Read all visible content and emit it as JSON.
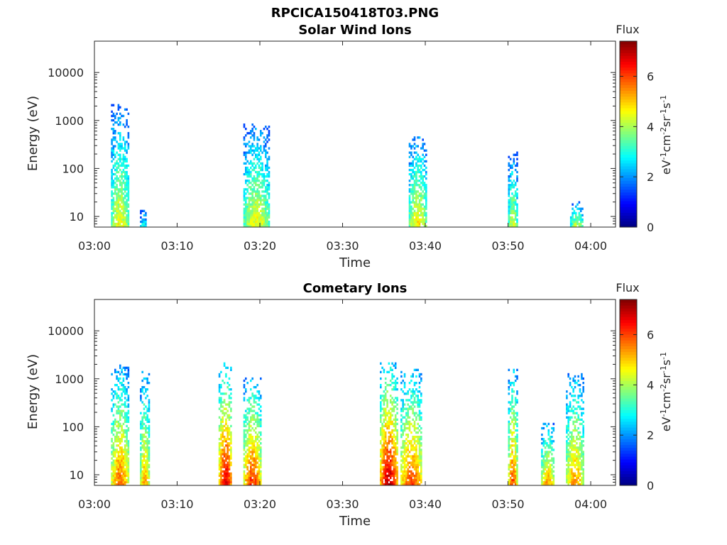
{
  "figure_title": "RPCICA150418T03.PNG",
  "chart_data": [
    {
      "type": "heatmap",
      "title": "Solar Wind Ions",
      "xlabel": "Time",
      "ylabel": "Energy (eV)",
      "y_scale": "log",
      "ylim": [
        6,
        45000
      ],
      "xlim": [
        "03:00",
        "04:03"
      ],
      "x_ticks": [
        "03:00",
        "03:10",
        "03:20",
        "03:30",
        "03:40",
        "03:50",
        "04:00"
      ],
      "y_ticks": [
        "10",
        "100",
        "1000",
        "10000"
      ],
      "colorbar": {
        "title": "Flux",
        "label": "eV-1 cm-2 sr-1 s-1",
        "min": 0,
        "max": 7.4,
        "ticks": [
          "0",
          "2",
          "4",
          "6"
        ],
        "colormap": "jet"
      },
      "bursts": [
        {
          "start": "03:02",
          "end": "03:04",
          "emin": 6,
          "emax": 2000,
          "peak": 4.6
        },
        {
          "start": "03:05.5",
          "end": "03:06.2",
          "emin": 6,
          "emax": 15,
          "peak": 3.0
        },
        {
          "start": "03:18",
          "end": "03:21",
          "emin": 6,
          "emax": 800,
          "peak": 4.6
        },
        {
          "start": "03:38",
          "end": "03:40",
          "emin": 6,
          "emax": 500,
          "peak": 4.8
        },
        {
          "start": "03:50",
          "end": "03:51",
          "emin": 6,
          "emax": 220,
          "peak": 4.4
        },
        {
          "start": "03:57.5",
          "end": "03:59",
          "emin": 6,
          "emax": 20,
          "peak": 4.2
        }
      ]
    },
    {
      "type": "heatmap",
      "title": "Cometary Ions",
      "xlabel": "Time",
      "ylabel": "Energy (eV)",
      "y_scale": "log",
      "ylim": [
        6,
        45000
      ],
      "xlim": [
        "03:00",
        "04:03"
      ],
      "x_ticks": [
        "03:00",
        "03:10",
        "03:20",
        "03:30",
        "03:40",
        "03:50",
        "04:00"
      ],
      "y_ticks": [
        "10",
        "100",
        "1000",
        "10000"
      ],
      "colorbar": {
        "title": "Flux",
        "label": "eV-1 cm-2 sr-1 s-1",
        "min": 0,
        "max": 7.4,
        "ticks": [
          "0",
          "2",
          "4",
          "6"
        ],
        "colormap": "jet"
      },
      "bursts": [
        {
          "start": "03:02",
          "end": "03:04",
          "emin": 6,
          "emax": 1800,
          "peak": 5.8
        },
        {
          "start": "03:05.5",
          "end": "03:06.5",
          "emin": 6,
          "emax": 1400,
          "peak": 5.4
        },
        {
          "start": "03:15",
          "end": "03:16.5",
          "emin": 6,
          "emax": 2000,
          "peak": 6.8
        },
        {
          "start": "03:18",
          "end": "03:20",
          "emin": 6,
          "emax": 1000,
          "peak": 6.2
        },
        {
          "start": "03:34.5",
          "end": "03:36.5",
          "emin": 6,
          "emax": 2000,
          "peak": 7.0
        },
        {
          "start": "03:37",
          "end": "03:39.5",
          "emin": 6,
          "emax": 1500,
          "peak": 6.0
        },
        {
          "start": "03:50",
          "end": "03:51",
          "emin": 6,
          "emax": 1500,
          "peak": 6.0
        },
        {
          "start": "03:54",
          "end": "03:55.5",
          "emin": 6,
          "emax": 120,
          "peak": 5.4
        },
        {
          "start": "03:57",
          "end": "03:59",
          "emin": 6,
          "emax": 1300,
          "peak": 5.4
        }
      ]
    }
  ]
}
